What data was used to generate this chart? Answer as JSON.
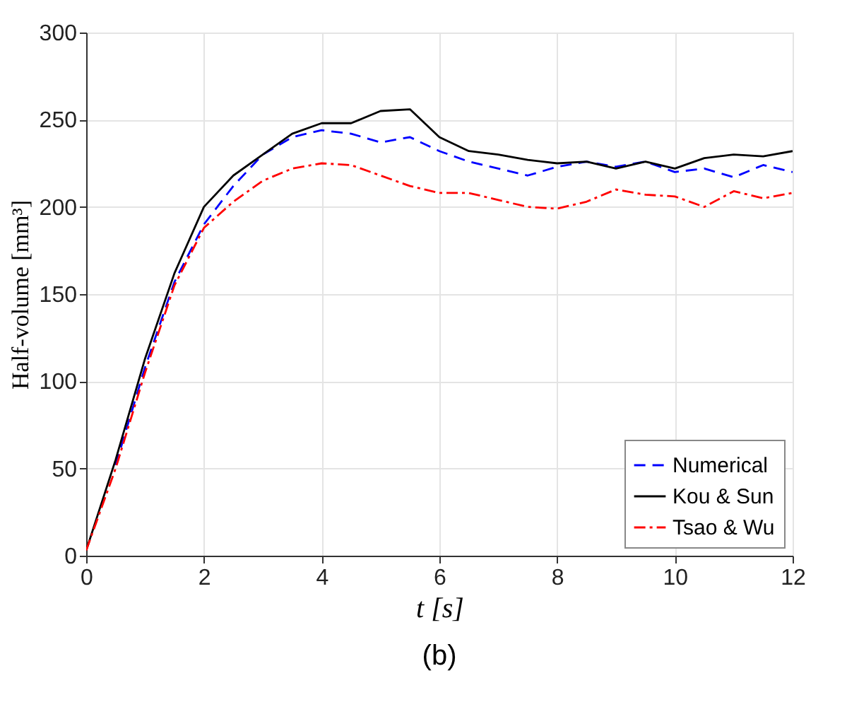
{
  "chart_data": {
    "type": "line",
    "xlabel": "t [s]",
    "ylabel": "Half-volume [mm³]",
    "x": [
      0,
      0.5,
      1,
      1.5,
      2,
      2.5,
      3,
      3.5,
      4,
      4.5,
      5,
      5.5,
      6,
      6.5,
      7,
      7.5,
      8,
      8.5,
      9,
      9.5,
      10,
      10.5,
      11,
      11.5,
      12
    ],
    "series": [
      {
        "name": "Numerical",
        "color": "#0000ff",
        "line_style": "dashed",
        "values": [
          null,
          52,
          108,
          157,
          190,
          212,
          230,
          240,
          244,
          242,
          237,
          240,
          232,
          226,
          222,
          218,
          223,
          226,
          223,
          226,
          220,
          222,
          217,
          224,
          220
        ]
      },
      {
        "name": "Kou & Sun",
        "color": "#000000",
        "line_style": "solid",
        "values": [
          3,
          55,
          113,
          162,
          200,
          218,
          230,
          242,
          248,
          248,
          255,
          256,
          240,
          232,
          230,
          227,
          225,
          226,
          222,
          226,
          222,
          228,
          230,
          229,
          232
        ]
      },
      {
        "name": "Tsao & Wu",
        "color": "#ff0000",
        "line_style": "dashdot",
        "values": [
          3,
          50,
          105,
          155,
          188,
          203,
          215,
          222,
          225,
          224,
          218,
          212,
          208,
          208,
          204,
          200,
          199,
          203,
          210,
          207,
          206,
          200,
          209,
          205,
          208
        ]
      }
    ],
    "xlim": [
      0,
      12
    ],
    "xticks": [
      0,
      2,
      4,
      6,
      8,
      10,
      12
    ],
    "ylim": [
      0,
      300
    ],
    "yticks": [
      0,
      50,
      100,
      150,
      200,
      250,
      300
    ],
    "grid": true,
    "legend": "bottom right",
    "marker": "none",
    "annotations": [
      "(b)"
    ]
  }
}
